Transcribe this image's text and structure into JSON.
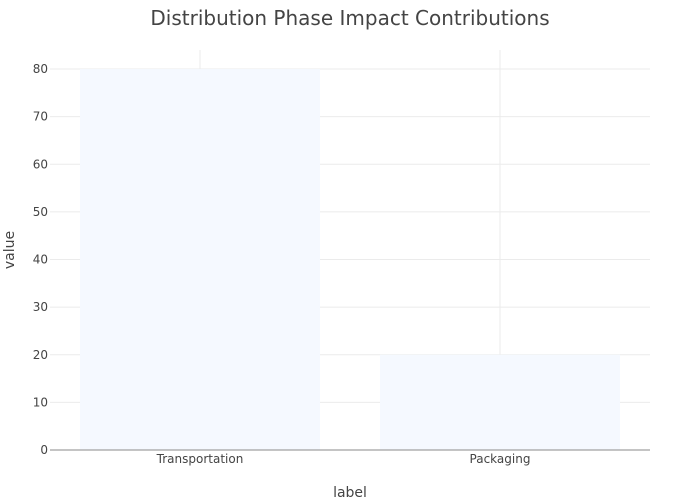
{
  "chart_data": {
    "type": "bar",
    "title": "Distribution Phase Impact Contributions",
    "xlabel": "label",
    "ylabel": "value",
    "categories": [
      "Transportation",
      "Packaging"
    ],
    "values": [
      80,
      20
    ],
    "ylim": [
      0,
      84
    ],
    "yticks": [
      0,
      10,
      20,
      30,
      40,
      50,
      60,
      70,
      80
    ],
    "grid": true,
    "legend": "none",
    "colors": {
      "bar_fill": "#f5f9ff",
      "grid": "#ebebeb",
      "axis_line": "#8a8a8a",
      "text": "#444444",
      "title": "#444444"
    }
  }
}
